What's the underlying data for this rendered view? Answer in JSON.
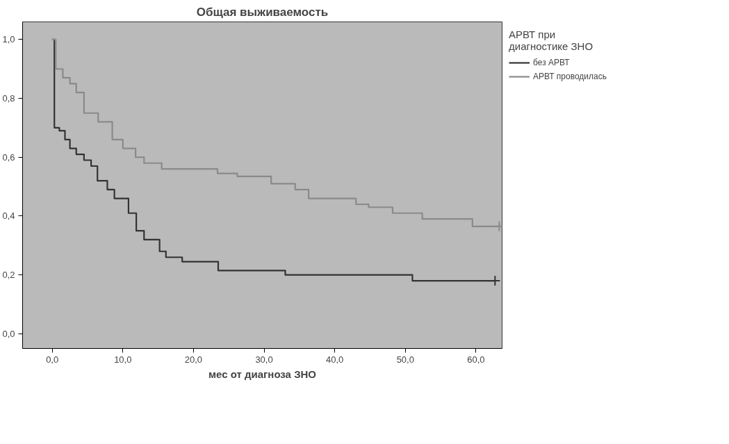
{
  "chart_data": {
    "type": "step",
    "title": "Общая выживаемость",
    "xlabel": "мес от диагноза ЗНО",
    "legend_title": "АРВТ при\nдиагностике ЗНО",
    "xlim": [
      -4.2,
      63.7
    ],
    "ylim": [
      -0.05,
      1.06
    ],
    "xticks": [
      {
        "value": 0,
        "label": "0,0"
      },
      {
        "value": 10,
        "label": "10,0"
      },
      {
        "value": 20,
        "label": "20,0"
      },
      {
        "value": 30,
        "label": "30,0"
      },
      {
        "value": 40,
        "label": "40,0"
      },
      {
        "value": 50,
        "label": "50,0"
      },
      {
        "value": 60,
        "label": "60,0"
      }
    ],
    "yticks": [
      {
        "value": 0,
        "label": "0,0"
      },
      {
        "value": 0.2,
        "label": "0,2"
      },
      {
        "value": 0.4,
        "label": "0,4"
      },
      {
        "value": 0.6,
        "label": "0,6"
      },
      {
        "value": 0.8,
        "label": "0,8"
      },
      {
        "value": 1.0,
        "label": "1,0"
      }
    ],
    "grid": false,
    "legend": "top right",
    "series": [
      {
        "name": "без АРВТ",
        "color": "#333333",
        "x": [
          0,
          0.3,
          1.0,
          1.8,
          2.5,
          3.4,
          4.5,
          5.5,
          6.4,
          7.8,
          8.8,
          10.8,
          11.9,
          13,
          15.2,
          16.1,
          18.4,
          23.5,
          33,
          51,
          62.7
        ],
        "values": [
          1.0,
          0.7,
          0.69,
          0.66,
          0.63,
          0.61,
          0.59,
          0.57,
          0.52,
          0.49,
          0.46,
          0.41,
          0.35,
          0.32,
          0.28,
          0.26,
          0.245,
          0.215,
          0.2,
          0.18,
          0.18
        ]
      },
      {
        "name": "АРВТ проводилась",
        "color": "#8a8a8a",
        "x": [
          0,
          0.5,
          1.5,
          2.5,
          3.4,
          4.5,
          6.5,
          8.5,
          10,
          11.8,
          13,
          15.5,
          23.4,
          26.2,
          31,
          34.4,
          36.3,
          43,
          44.8,
          48.2,
          52.4,
          59.5,
          63.3
        ],
        "values": [
          1.0,
          0.9,
          0.87,
          0.85,
          0.82,
          0.75,
          0.72,
          0.66,
          0.63,
          0.6,
          0.58,
          0.56,
          0.545,
          0.535,
          0.51,
          0.49,
          0.46,
          0.44,
          0.43,
          0.41,
          0.39,
          0.365,
          0.365
        ]
      },
      {
        "type": "scatter",
        "marker": "cross",
        "color": "#333333",
        "x": [
          62.7
        ],
        "values": [
          0.18
        ]
      },
      {
        "type": "scatter",
        "marker": "cross",
        "color": "#8a8a8a",
        "x": [
          63.3
        ],
        "values": [
          0.365
        ]
      }
    ]
  }
}
